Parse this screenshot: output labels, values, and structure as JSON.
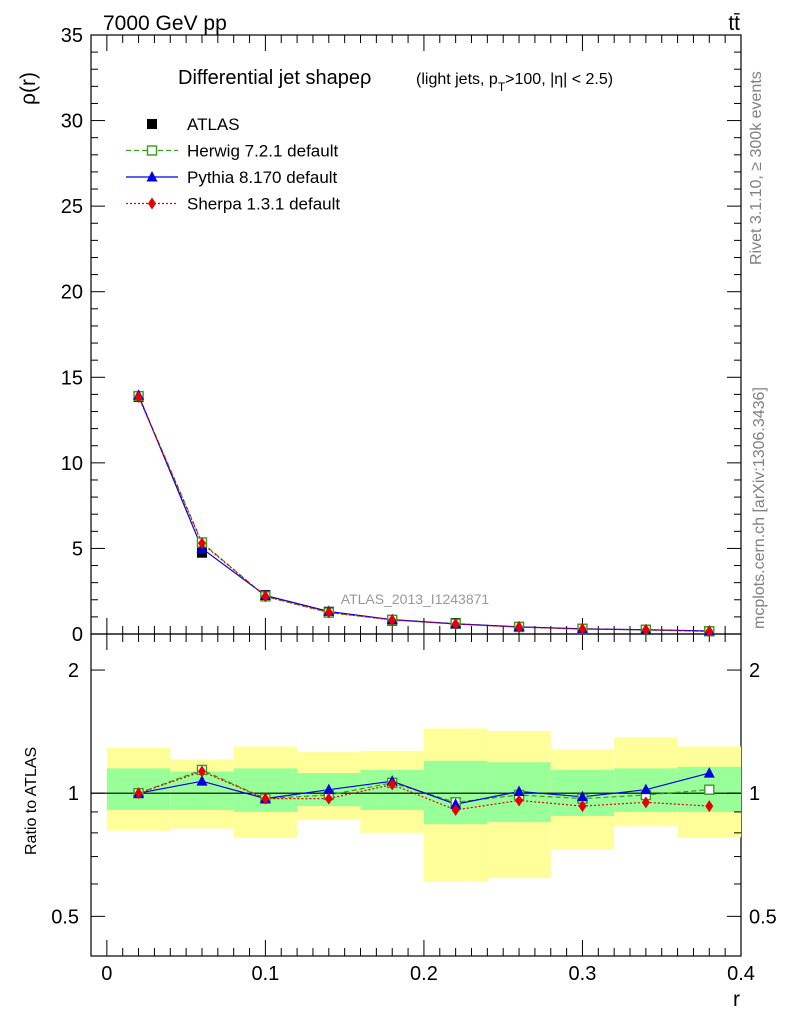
{
  "header": {
    "energy_label": "7000 GeV pp",
    "process_label": "tt̄"
  },
  "side_labels": {
    "rivet": "Rivet 3.1.10, ≥ 300k events",
    "mcplots": "mcplots.cern.ch [arXiv:1306.3436]"
  },
  "watermark": "ATLAS_2013_I1243871",
  "colors": {
    "atlas": "#000000",
    "herwig": "#3c9a1e",
    "pythia": "#0000e6",
    "sherpa": "#e60000",
    "band_inner": "#99ff99",
    "band_outer": "#ffff99"
  },
  "chart_data": [
    {
      "type": "line",
      "title": "Differential jet shape",
      "title_symbol": "ρ",
      "subtitle_parts": {
        "pre": "(light jets, p",
        "sub": "T",
        "post": ">100, |η| < 2.5)"
      },
      "ylabel": "ρ(r)",
      "xlabel": "",
      "xlim": [
        -0.01,
        0.4
      ],
      "ylim": [
        0,
        35
      ],
      "y_ticks": [
        0,
        5,
        10,
        15,
        20,
        25,
        30,
        35
      ],
      "grid": false,
      "legend_position": "top-left",
      "x": [
        0.02,
        0.06,
        0.1,
        0.14,
        0.18,
        0.22,
        0.26,
        0.3,
        0.34,
        0.38
      ],
      "series": [
        {
          "name": "ATLAS",
          "key": "atlas",
          "marker": "filled-square",
          "values": [
            13.85,
            4.75,
            2.27,
            1.3,
            0.78,
            0.64,
            0.42,
            0.31,
            0.25,
            0.16
          ]
        },
        {
          "name": "Herwig 7.2.1 default",
          "key": "herwig",
          "marker": "open-square",
          "line": "dashed",
          "values": [
            13.9,
            5.35,
            2.2,
            1.25,
            0.83,
            0.6,
            0.41,
            0.3,
            0.24,
            0.16
          ]
        },
        {
          "name": "Pythia 8.170 default",
          "key": "pythia",
          "marker": "filled-triangle",
          "line": "solid",
          "values": [
            13.95,
            5.0,
            2.25,
            1.32,
            0.84,
            0.59,
            0.42,
            0.3,
            0.25,
            0.18
          ]
        },
        {
          "name": "Sherpa 1.3.1 default",
          "key": "sherpa",
          "marker": "filled-diamond",
          "line": "dotted",
          "values": [
            13.85,
            5.3,
            2.2,
            1.26,
            0.82,
            0.58,
            0.4,
            0.29,
            0.24,
            0.15
          ]
        }
      ]
    },
    {
      "type": "line",
      "ylabel": "Ratio to ATLAS",
      "xlabel": "r",
      "xlim": [
        -0.01,
        0.4
      ],
      "ylim": [
        0.4,
        2.45
      ],
      "y_scale": "log",
      "y_ticks": [
        0.5,
        1,
        2
      ],
      "x_ticks": [
        0,
        0.1,
        0.2,
        0.3,
        0.4
      ],
      "x_tick_labels": [
        "0",
        "0.1",
        "0.2",
        "0.3",
        "0.4"
      ],
      "grid": false,
      "x": [
        0.02,
        0.06,
        0.1,
        0.14,
        0.18,
        0.22,
        0.26,
        0.3,
        0.34,
        0.38
      ],
      "bins": [
        [
          0.0,
          0.04
        ],
        [
          0.04,
          0.08
        ],
        [
          0.08,
          0.12
        ],
        [
          0.12,
          0.16
        ],
        [
          0.16,
          0.2
        ],
        [
          0.2,
          0.24
        ],
        [
          0.24,
          0.28
        ],
        [
          0.28,
          0.32
        ],
        [
          0.32,
          0.36
        ],
        [
          0.36,
          0.4
        ]
      ],
      "band_inner": [
        [
          0.91,
          1.15
        ],
        [
          0.91,
          1.13
        ],
        [
          0.9,
          1.15
        ],
        [
          0.93,
          1.12
        ],
        [
          0.91,
          1.14
        ],
        [
          0.84,
          1.2
        ],
        [
          0.85,
          1.19
        ],
        [
          0.88,
          1.14
        ],
        [
          0.9,
          1.15
        ],
        [
          0.9,
          1.16
        ]
      ],
      "band_outer": [
        [
          0.81,
          1.29
        ],
        [
          0.82,
          1.21
        ],
        [
          0.78,
          1.3
        ],
        [
          0.86,
          1.26
        ],
        [
          0.8,
          1.27
        ],
        [
          0.61,
          1.44
        ],
        [
          0.62,
          1.42
        ],
        [
          0.73,
          1.28
        ],
        [
          0.83,
          1.37
        ],
        [
          0.78,
          1.3
        ]
      ],
      "series": [
        {
          "name": "Herwig 7.2.1 default",
          "key": "herwig",
          "marker": "open-square",
          "line": "dashed",
          "values": [
            1.0,
            1.14,
            0.97,
            0.99,
            1.06,
            0.95,
            0.99,
            0.97,
            0.99,
            1.02
          ]
        },
        {
          "name": "Pythia 8.170 default",
          "key": "pythia",
          "marker": "filled-triangle",
          "line": "solid",
          "values": [
            1.0,
            1.07,
            0.97,
            1.02,
            1.07,
            0.94,
            1.01,
            0.98,
            1.02,
            1.12
          ]
        },
        {
          "name": "Sherpa 1.3.1 default",
          "key": "sherpa",
          "marker": "filled-diamond",
          "line": "dotted",
          "values": [
            1.0,
            1.13,
            0.97,
            0.97,
            1.05,
            0.91,
            0.96,
            0.93,
            0.95,
            0.93
          ]
        }
      ]
    }
  ]
}
